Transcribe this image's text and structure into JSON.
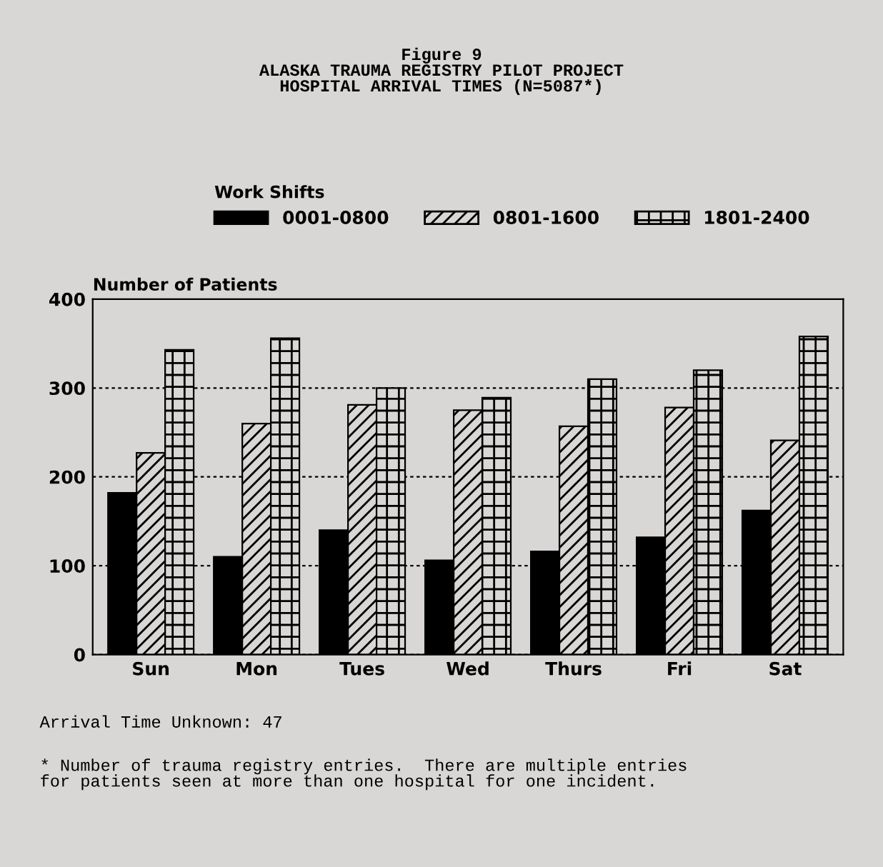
{
  "chart_data": {
    "type": "bar",
    "title": "Figure 9\nALASKA TRAUMA REGISTRY PILOT PROJECT\nHOSPITAL ARRIVAL TIMES (N=5087*)",
    "legend_title": "Work Shifts",
    "ylabel": "Number of Patients",
    "categories": [
      "Sun",
      "Mon",
      "Tues",
      "Wed",
      "Thurs",
      "Fri",
      "Sat"
    ],
    "series": [
      {
        "name": "0001-0800",
        "color": "#000000",
        "values": [
          182,
          110,
          140,
          106,
          116,
          132,
          162
        ]
      },
      {
        "name": "0801-1600",
        "color": "#000000",
        "values": [
          227,
          260,
          281,
          275,
          257,
          278,
          241
        ]
      },
      {
        "name": "1801-2400",
        "color": "#000000",
        "values": [
          343,
          356,
          300,
          289,
          310,
          320,
          358
        ]
      }
    ],
    "ylim": [
      0,
      400
    ],
    "yticks": [
      0,
      100,
      200,
      300,
      400
    ],
    "grid": "y",
    "legend": "top",
    "annotations": [
      "Arrival Time Unknown: 47",
      "* Number of trauma registry entries.  There are multiple entries\nfor patients seen at more than one hospital for one incident."
    ]
  }
}
